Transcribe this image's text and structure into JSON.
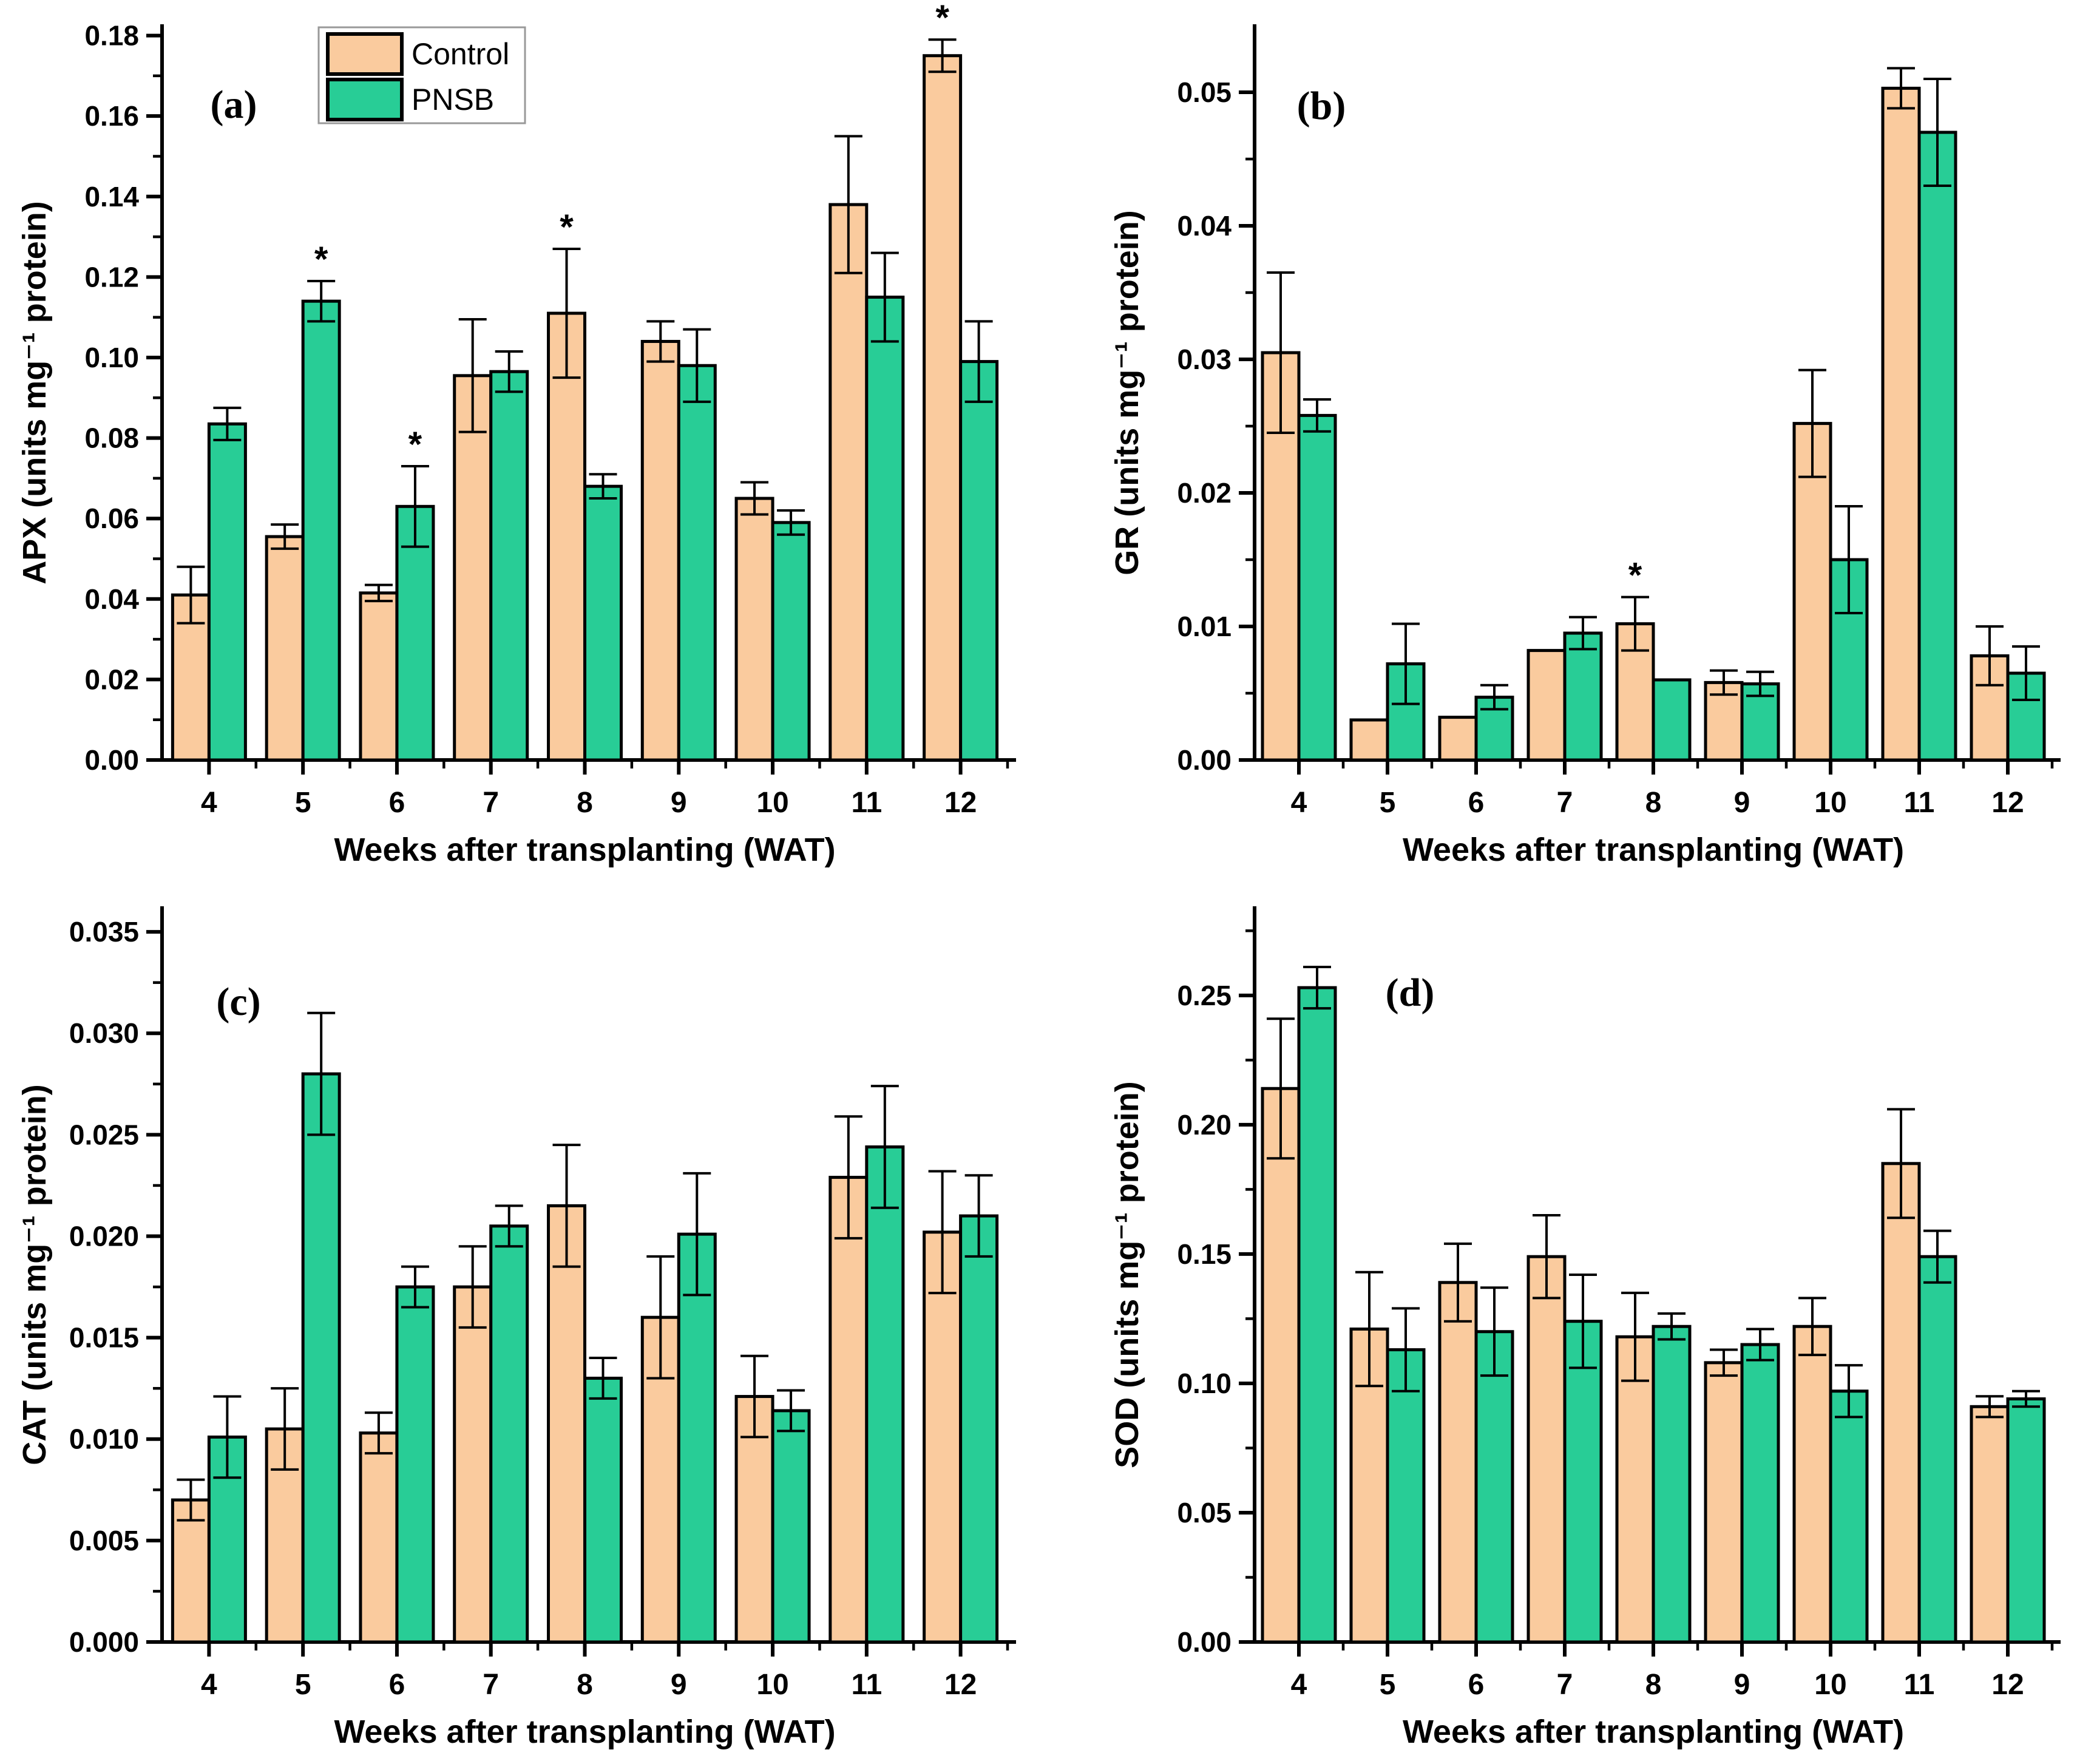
{
  "figure": {
    "background": "#ffffff",
    "x_axis_label": "Weeks after transplanting (WAT)",
    "legend": {
      "items": [
        {
          "label": "Control",
          "color": "#FACB9E"
        },
        {
          "label": "PNSB",
          "color": "#28CD96"
        }
      ],
      "border_color": "#999999",
      "location": "top-center-panel-a"
    },
    "axis_color": "#000000",
    "error_bar_color": "#000000",
    "bar_border_color": "#000000",
    "significance_marker": "*"
  },
  "chart_data": [
    {
      "type": "bar",
      "panel_label": "(a)",
      "title": "",
      "ylabel": "APX (units mg⁻¹ protein)",
      "xlabel": "Weeks after transplanting (WAT)",
      "categories": [
        4,
        5,
        6,
        7,
        8,
        9,
        10,
        11,
        12
      ],
      "ylim": [
        0,
        0.1825
      ],
      "ytick_step": 0.02,
      "ytick_max": 0.18,
      "minor_step": 0.01,
      "y_decimals": 2,
      "grid": false,
      "show_legend": true,
      "series": [
        {
          "name": "Control",
          "color": "#FACB9E",
          "values": [
            0.041,
            0.0555,
            0.0415,
            0.0955,
            0.111,
            0.104,
            0.065,
            0.138,
            0.175
          ],
          "errors": [
            0.007,
            0.003,
            0.002,
            0.014,
            0.016,
            0.005,
            0.004,
            0.017,
            0.004
          ]
        },
        {
          "name": "PNSB",
          "color": "#28CD96",
          "values": [
            0.0835,
            0.114,
            0.063,
            0.0965,
            0.068,
            0.098,
            0.059,
            0.115,
            0.099
          ],
          "errors": [
            0.004,
            0.005,
            0.01,
            0.005,
            0.003,
            0.009,
            0.003,
            0.011,
            0.01
          ]
        }
      ],
      "asterisks": [
        {
          "series": "PNSB",
          "category": 5
        },
        {
          "series": "PNSB",
          "category": 6
        },
        {
          "series": "Control",
          "category": 8
        },
        {
          "series": "Control",
          "category": 12
        }
      ]
    },
    {
      "type": "bar",
      "panel_label": "(b)",
      "title": "",
      "ylabel": "GR (units mg⁻¹ protein)",
      "xlabel": "Weeks after transplanting (WAT)",
      "categories": [
        4,
        5,
        6,
        7,
        8,
        9,
        10,
        11,
        12
      ],
      "ylim": [
        0,
        0.055
      ],
      "ytick_step": 0.01,
      "ytick_max": 0.05,
      "minor_step": 0.005,
      "y_decimals": 2,
      "grid": false,
      "show_legend": false,
      "series": [
        {
          "name": "Control",
          "color": "#FACB9E",
          "values": [
            0.0305,
            0.003,
            0.0032,
            0.0082,
            0.0102,
            0.0058,
            0.0252,
            0.0503,
            0.0078
          ],
          "errors": [
            0.006,
            0,
            0,
            0,
            0.002,
            0.0009,
            0.004,
            0.0015,
            0.0022
          ]
        },
        {
          "name": "PNSB",
          "color": "#28CD96",
          "values": [
            0.0258,
            0.0072,
            0.0047,
            0.0095,
            0.006,
            0.0057,
            0.015,
            0.047,
            0.0065
          ],
          "errors": [
            0.0012,
            0.003,
            0.0009,
            0.0012,
            0,
            0.0009,
            0.004,
            0.004,
            0.002
          ]
        }
      ],
      "asterisks": [
        {
          "series": "Control",
          "category": 8
        }
      ]
    },
    {
      "type": "bar",
      "panel_label": "(c)",
      "title": "",
      "ylabel": "CAT (units mg⁻¹ protein)",
      "xlabel": "Weeks after transplanting (WAT)",
      "categories": [
        4,
        5,
        6,
        7,
        8,
        9,
        10,
        11,
        12
      ],
      "ylim": [
        0,
        0.0362
      ],
      "ytick_step": 0.005,
      "ytick_max": 0.035,
      "minor_step": 0.0025,
      "y_decimals": 3,
      "grid": false,
      "show_legend": false,
      "series": [
        {
          "name": "Control",
          "color": "#FACB9E",
          "values": [
            0.007,
            0.0105,
            0.0103,
            0.0175,
            0.0215,
            0.016,
            0.0121,
            0.0229,
            0.0202
          ],
          "errors": [
            0.001,
            0.002,
            0.001,
            0.002,
            0.003,
            0.003,
            0.002,
            0.003,
            0.003
          ]
        },
        {
          "name": "PNSB",
          "color": "#28CD96",
          "values": [
            0.0101,
            0.028,
            0.0175,
            0.0205,
            0.013,
            0.0201,
            0.0114,
            0.0244,
            0.021
          ],
          "errors": [
            0.002,
            0.003,
            0.001,
            0.001,
            0.001,
            0.003,
            0.001,
            0.003,
            0.002
          ]
        }
      ],
      "asterisks": []
    },
    {
      "type": "bar",
      "panel_label": "(d)",
      "title": "",
      "ylabel": "SOD (units mg⁻¹ protein)",
      "xlabel": "Weeks after transplanting (WAT)",
      "categories": [
        4,
        5,
        6,
        7,
        8,
        9,
        10,
        11,
        12
      ],
      "ylim": [
        0,
        0.284
      ],
      "ytick_step": 0.05,
      "ytick_max": 0.25,
      "minor_step": 0.025,
      "y_decimals": 2,
      "grid": false,
      "show_legend": false,
      "series": [
        {
          "name": "Control",
          "color": "#FACB9E",
          "values": [
            0.214,
            0.121,
            0.139,
            0.149,
            0.118,
            0.108,
            0.122,
            0.185,
            0.091
          ],
          "errors": [
            0.027,
            0.022,
            0.015,
            0.016,
            0.017,
            0.005,
            0.011,
            0.021,
            0.004
          ]
        },
        {
          "name": "PNSB",
          "color": "#28CD96",
          "values": [
            0.253,
            0.113,
            0.12,
            0.124,
            0.122,
            0.115,
            0.097,
            0.149,
            0.094
          ],
          "errors": [
            0.008,
            0.016,
            0.017,
            0.018,
            0.005,
            0.006,
            0.01,
            0.01,
            0.003
          ]
        }
      ],
      "asterisks": []
    }
  ]
}
